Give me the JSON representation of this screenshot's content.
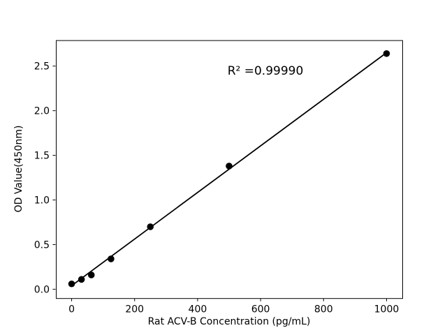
{
  "figure": {
    "background_color": "#ffffff"
  },
  "chart_data": {
    "type": "scatter",
    "title": "",
    "xlabel": "Rat ACV-B Concentration (pg/mL)",
    "ylabel": "OD Value(450nm)",
    "annotation": {
      "text": "R² =0.99990"
    },
    "x": [
      0,
      31.25,
      62.5,
      125,
      250,
      500,
      1000
    ],
    "y": [
      0.06,
      0.11,
      0.16,
      0.34,
      0.7,
      1.38,
      2.64
    ],
    "fit_line": {
      "x": [
        0,
        1000
      ],
      "y": [
        0.04,
        2.65
      ]
    },
    "xticks": [
      0,
      200,
      400,
      600,
      800,
      1000
    ],
    "yticks": [
      0.0,
      0.5,
      1.0,
      1.5,
      2.0,
      2.5
    ],
    "xlim": [
      -50,
      1050
    ],
    "ylim": [
      -0.1,
      2.79
    ],
    "marker_color": "#000000",
    "line_color": "#000000",
    "axis_color": "#000000",
    "grid": false,
    "legend_position": "none"
  }
}
